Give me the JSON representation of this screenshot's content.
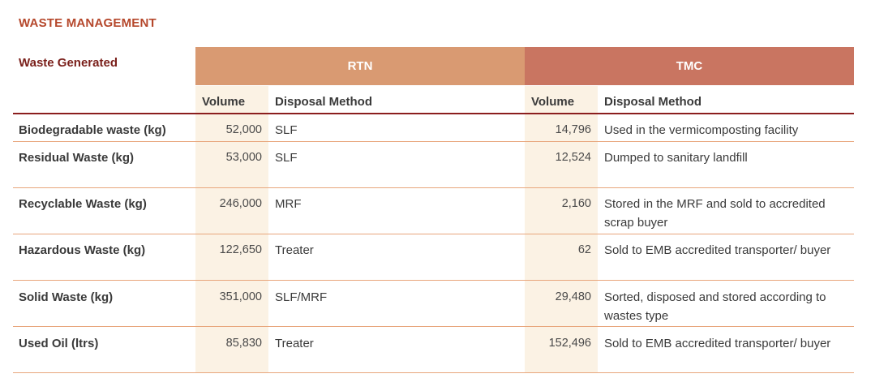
{
  "section_title": "WASTE MANAGEMENT",
  "row_header": "Waste Generated",
  "groups": {
    "rtn": "RTN",
    "tmc": "TMC"
  },
  "subheaders": {
    "volume": "Volume",
    "disposal": "Disposal Method"
  },
  "rows": [
    {
      "label": "Biodegradable waste (kg)",
      "rtn_volume": "52,000",
      "rtn_method": "SLF",
      "tmc_volume": "14,796",
      "tmc_method": "Used in the vermicomposting facility"
    },
    {
      "label": "Residual Waste (kg)",
      "rtn_volume": "53,000",
      "rtn_method": "SLF",
      "tmc_volume": "12,524",
      "tmc_method": "Dumped to sanitary landfill"
    },
    {
      "label": "Recyclable Waste (kg)",
      "rtn_volume": "246,000",
      "rtn_method": "MRF",
      "tmc_volume": "2,160",
      "tmc_method": "Stored in the MRF and sold to accredited scrap buyer"
    },
    {
      "label": "Hazardous Waste (kg)",
      "rtn_volume": "122,650",
      "rtn_method": "Treater",
      "tmc_volume": "62",
      "tmc_method": "Sold to EMB accredited transporter/ buyer"
    },
    {
      "label": "Solid Waste (kg)",
      "rtn_volume": "351,000",
      "rtn_method": "SLF/MRF",
      "tmc_volume": "29,480",
      "tmc_method": "Sorted, disposed and stored according to wastes type"
    },
    {
      "label": "Used Oil (ltrs)",
      "rtn_volume": "85,830",
      "rtn_method": "Treater",
      "tmc_volume": "152,496",
      "tmc_method": "Sold to EMB accredited transporter/ buyer"
    }
  ],
  "colors": {
    "title": "#b5472b",
    "rtn_header": "#d99a72",
    "tmc_header": "#c97561",
    "volume_column_bg": "#fbf2e4",
    "row_rule": "#e8a67c",
    "header_rule": "#8b1e1e"
  }
}
